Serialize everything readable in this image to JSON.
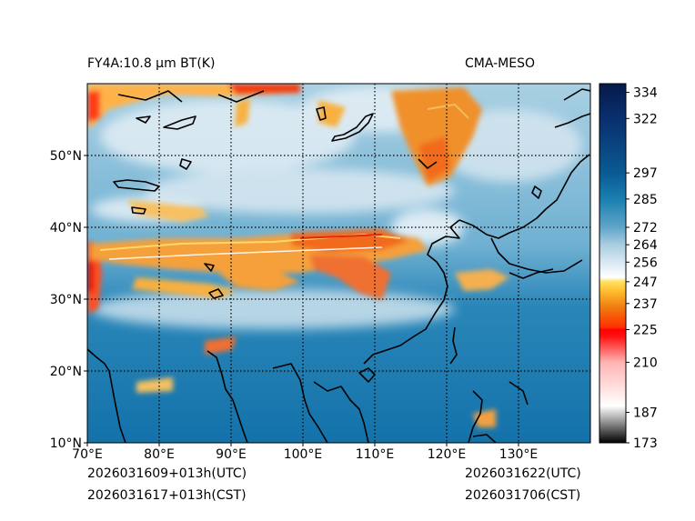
{
  "header": {
    "left_title": "FY4A:10.8 µm BT(K)",
    "right_title": "CMA-MESO"
  },
  "footer": {
    "init_utc": "2026031609+013h(UTC)",
    "init_cst": "2026031617+013h(CST)",
    "valid_utc": "2026031622(UTC)",
    "valid_cst": "2026031706(CST)"
  },
  "map": {
    "lon_min": 70,
    "lon_max": 140,
    "lat_min": 10,
    "lat_max": 60,
    "lon_labels": [
      "70°E",
      "80°E",
      "90°E",
      "100°E",
      "110°E",
      "120°E",
      "130°E"
    ],
    "lat_labels": [
      "10°N",
      "20°N",
      "30°N",
      "40°N",
      "50°N"
    ],
    "lon_values": [
      70,
      80,
      90,
      100,
      110,
      120,
      130
    ],
    "lat_values": [
      10,
      20,
      30,
      40,
      50
    ]
  },
  "colorbar": {
    "vmin": 173,
    "vmax": 338,
    "tick_values": [
      334,
      322,
      297,
      285,
      272,
      264,
      256,
      247,
      237,
      225,
      210,
      187,
      173
    ],
    "tick_labels": [
      "334",
      "322",
      "297",
      "285",
      "272",
      "264",
      "256",
      "247",
      "237",
      "225",
      "210",
      "187",
      "173"
    ],
    "stops": [
      {
        "v": 173,
        "c": "#000000"
      },
      {
        "v": 183,
        "c": "#9a9a9a"
      },
      {
        "v": 190,
        "c": "#ffffff"
      },
      {
        "v": 210,
        "c": "#ffb3b3"
      },
      {
        "v": 222,
        "c": "#ff1010"
      },
      {
        "v": 225,
        "c": "#ff0000"
      },
      {
        "v": 226,
        "c": "#ff3000"
      },
      {
        "v": 235,
        "c": "#f07a10"
      },
      {
        "v": 243,
        "c": "#ffc030"
      },
      {
        "v": 247,
        "c": "#ffe060"
      },
      {
        "v": 249,
        "c": "#ffffff"
      },
      {
        "v": 256,
        "c": "#d8e8f2"
      },
      {
        "v": 264,
        "c": "#a9cde0"
      },
      {
        "v": 272,
        "c": "#5fa5c8"
      },
      {
        "v": 285,
        "c": "#1a7fb0"
      },
      {
        "v": 297,
        "c": "#0a5a92"
      },
      {
        "v": 322,
        "c": "#0a2f6e"
      },
      {
        "v": 338,
        "c": "#051a4a"
      }
    ]
  }
}
